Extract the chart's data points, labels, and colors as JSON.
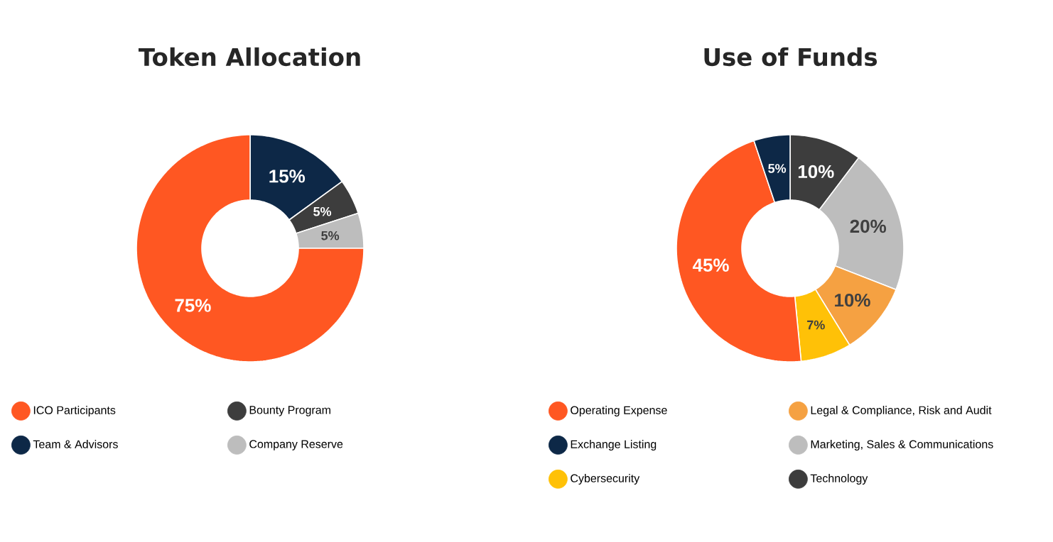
{
  "chart_data": [
    {
      "type": "donut",
      "title": "Token Allocation",
      "categories": [
        "Team & Advisors",
        "Bounty Program",
        "Company Reserve",
        "ICO Participants"
      ],
      "values": [
        15,
        5,
        5,
        75
      ],
      "value_labels": [
        "15%",
        "5%",
        "5%",
        "75%"
      ],
      "colors": [
        "#0d2847",
        "#3d3d3d",
        "#bdbdbd",
        "#ff5722"
      ],
      "legend": "bottom"
    },
    {
      "type": "donut",
      "title": "Use of Funds",
      "categories": [
        "Technology",
        "Marketing, Sales & Communications",
        "Legal & Compliance, Risk and Audit",
        "Cybersecurity",
        "Operating Expense",
        "Exchange Listing"
      ],
      "values": [
        10,
        20,
        10,
        7,
        45,
        5
      ],
      "value_labels": [
        "10%",
        "20%",
        "10%",
        "7%",
        "45%",
        "5%"
      ],
      "colors": [
        "#3d3d3d",
        "#bdbdbd",
        "#f5a142",
        "#ffc107",
        "#ff5722",
        "#0d2847"
      ],
      "legend": "bottom"
    }
  ]
}
